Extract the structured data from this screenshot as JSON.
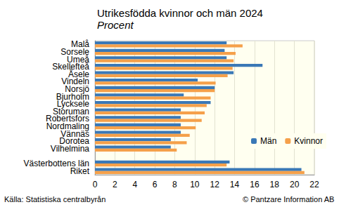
{
  "chart_data": {
    "type": "bar",
    "orientation": "horizontal",
    "title": "Utrikesfödda kvinnor och män 2024",
    "subtitle": "Procent",
    "annotations": [
      "Källa: Statistiska centralbyrån",
      "© Pantzare Information AB"
    ],
    "categories": [
      "Malå",
      "Sorsele",
      "Umeå",
      "Skellefteå",
      "Åsele",
      "Vindeln",
      "Norsjö",
      "Bjurholm",
      "Lycksele",
      "Storuman",
      "Robertsfors",
      "Nordmaling",
      "Vännäs",
      "Dorotea",
      "Vilhelmina",
      null,
      "Västerbottens län",
      "Riket"
    ],
    "series": [
      {
        "name": "Män",
        "color": "#3a78b6",
        "values": [
          13.2,
          13.0,
          13.2,
          16.8,
          13.9,
          10.3,
          12.0,
          8.9,
          11.6,
          8.6,
          8.6,
          8.6,
          8.6,
          7.6,
          7.6,
          null,
          13.5,
          20.7
        ]
      },
      {
        "name": "Kvinnor",
        "color": "#f5a04a",
        "values": [
          14.8,
          14.1,
          13.9,
          13.8,
          13.3,
          12.1,
          12.0,
          11.6,
          11.2,
          11.0,
          10.7,
          10.1,
          9.5,
          9.2,
          8.2,
          null,
          13.2,
          21.0
        ]
      }
    ],
    "xlim": [
      0,
      22
    ],
    "xticks": [
      0,
      2,
      4,
      6,
      8,
      10,
      12,
      14,
      16,
      18,
      20,
      22
    ],
    "grid": true,
    "legend": "right"
  }
}
